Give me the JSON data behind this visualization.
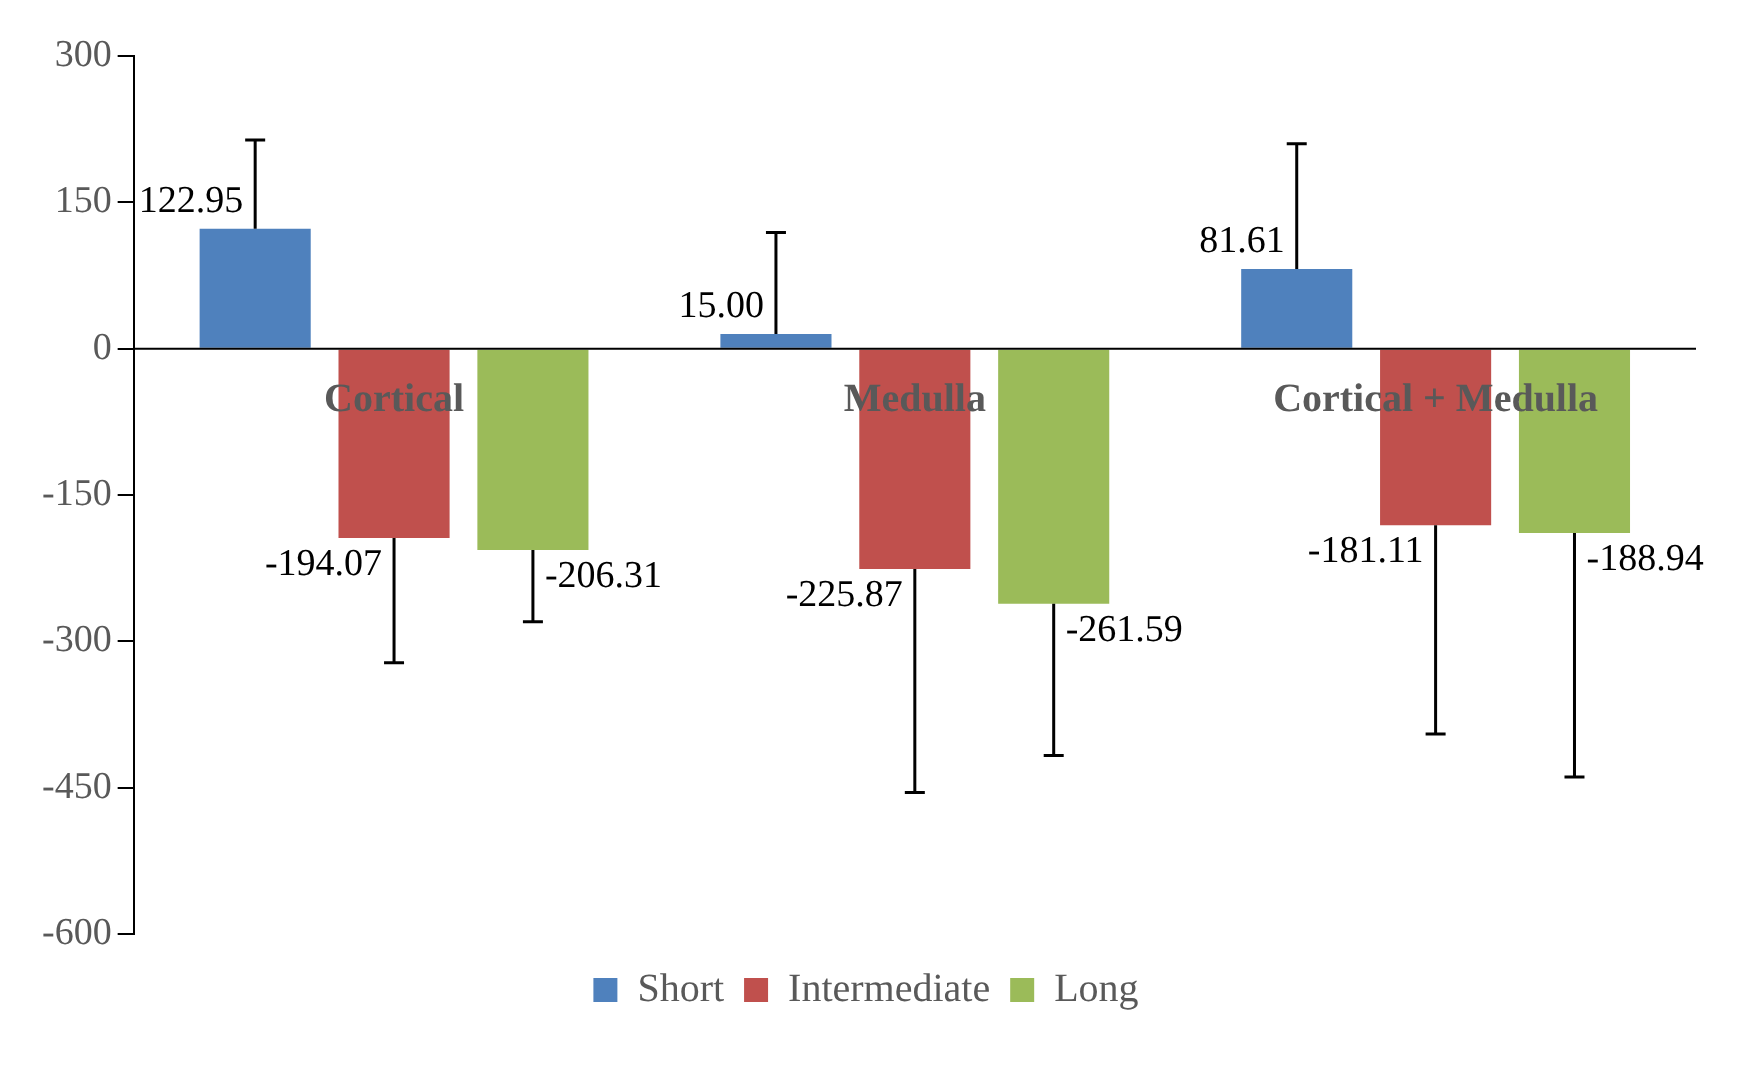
{
  "chart_data": {
    "type": "bar",
    "categories": [
      "Cortical",
      "Medulla",
      "Cortical + Medulla"
    ],
    "series": [
      {
        "name": "Short",
        "color": "#4f81bd",
        "values": [
          122.95,
          15.0,
          81.61
        ],
        "value_labels": [
          "122.95",
          "15.00",
          "81.61"
        ],
        "errors": [
          [
            122.95,
            214
          ],
          [
            15.0,
            119
          ],
          [
            81.61,
            210
          ]
        ]
      },
      {
        "name": "Intermediate",
        "color": "#c0504d",
        "values": [
          -194.07,
          -225.87,
          -181.11
        ],
        "value_labels": [
          "-194.07",
          "-225.87",
          "-181.11"
        ],
        "errors": [
          [
            -322,
            -194.07
          ],
          [
            -455,
            -225.87
          ],
          [
            -395,
            -181.11
          ]
        ]
      },
      {
        "name": "Long",
        "color": "#9bbb59",
        "values": [
          -206.31,
          -261.59,
          -188.94
        ],
        "value_labels": [
          "-206.31",
          "-261.59",
          "-188.94"
        ],
        "errors": [
          [
            -280,
            -206.31
          ],
          [
            -417,
            -261.59
          ],
          [
            -439,
            -188.94
          ]
        ]
      }
    ],
    "ylim": [
      -600,
      300
    ],
    "yticks": [
      -600,
      -450,
      -300,
      -150,
      0,
      150,
      300
    ],
    "grid": false,
    "legend": "bottom"
  }
}
